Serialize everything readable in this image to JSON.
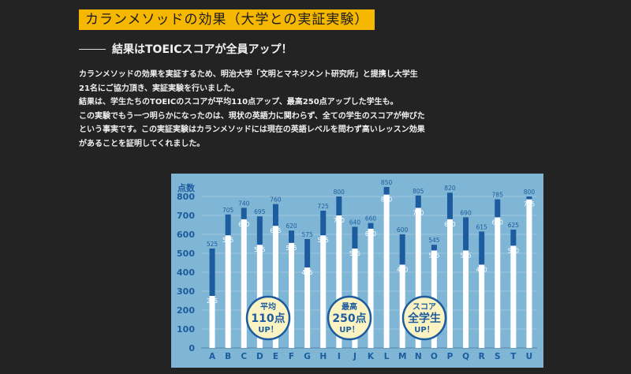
{
  "title": "カランメソッドの効果（大学との実証実験）",
  "subtitle": "結果はTOEICスコアが全員アップ！",
  "paragraphs": [
    "カランメソッドの効果を実証するため、明治大学「文明とマネジメント研究所」と提携し大学生",
    "21名にご協力頂き、実証実験を行いました。",
    "結果は、学生たちのTOEICのスコアが平均110点アップ、最高250点アップした学生も。",
    "この実験でもう一つ明らかになったのは、現状の英語力に関わらず、全ての学生のスコアが伸びた",
    "という事実です。この実証実験はカランメソッドには現在の英語レベルを問わず高いレッスン効果",
    "があることを証明してくれました。"
  ],
  "colors": {
    "page_bg": "#232323",
    "title_bg": "#f6b700",
    "chart_bg": "#7fb6d6",
    "bar_gain": "#1c5c9e",
    "bar_before": "#ffffff",
    "badge_bg": "#fbf3c2",
    "badge_text": "#1c5c9e"
  },
  "chart_data": {
    "type": "bar",
    "ylabel": "点数",
    "ylim": [
      0,
      900
    ],
    "yticks": [
      0,
      100,
      200,
      300,
      400,
      500,
      600,
      700,
      800
    ],
    "grid": true,
    "categories": [
      "A",
      "B",
      "C",
      "D",
      "E",
      "F",
      "G",
      "H",
      "I",
      "J",
      "K",
      "L",
      "M",
      "N",
      "O",
      "P",
      "Q",
      "R",
      "S",
      "T",
      "U"
    ],
    "series": [
      {
        "values": [
          275,
          595,
          680,
          545,
          645,
          555,
          425,
          595,
          700,
          525,
          630,
          810,
          440,
          740,
          515,
          680,
          515,
          440,
          690,
          540,
          785
        ]
      },
      {
        "values": [
          525,
          705,
          740,
          695,
          760,
          620,
          575,
          725,
          800,
          640,
          660,
          850,
          600,
          805,
          545,
          820,
          690,
          615,
          785,
          625,
          800
        ]
      }
    ],
    "badges": [
      {
        "lines": [
          "平均",
          "110点",
          "UP！"
        ]
      },
      {
        "lines": [
          "最高",
          "250点",
          "UP！"
        ]
      },
      {
        "lines": [
          "スコア",
          "全学生",
          "UP！"
        ]
      }
    ]
  }
}
